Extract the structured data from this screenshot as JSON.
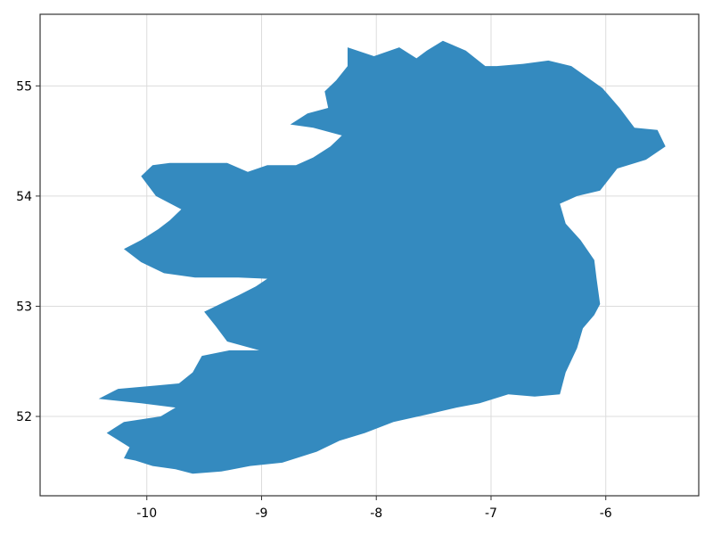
{
  "map": {
    "region": "Ireland",
    "fill_color": "#348abf",
    "grid": true,
    "x_axis": {
      "lim": [
        -10.93,
        -5.19
      ],
      "ticks": [
        -10,
        -9,
        -8,
        -7,
        -6
      ],
      "tick_labels": [
        "-10",
        "-9",
        "-8",
        "-7",
        "-6"
      ]
    },
    "y_axis": {
      "lim": [
        51.28,
        55.65
      ],
      "ticks": [
        52,
        53,
        54,
        55
      ],
      "tick_labels": [
        "52",
        "53",
        "54",
        "55"
      ]
    },
    "outline": [
      [
        -8.25,
        55.35
      ],
      [
        -8.02,
        55.27
      ],
      [
        -7.8,
        55.35
      ],
      [
        -7.65,
        55.25
      ],
      [
        -7.56,
        55.32
      ],
      [
        -7.42,
        55.41
      ],
      [
        -7.22,
        55.32
      ],
      [
        -7.05,
        55.18
      ],
      [
        -6.95,
        55.18
      ],
      [
        -6.72,
        55.2
      ],
      [
        -6.5,
        55.23
      ],
      [
        -6.3,
        55.18
      ],
      [
        -6.15,
        55.07
      ],
      [
        -6.03,
        54.98
      ],
      [
        -5.88,
        54.8
      ],
      [
        -5.75,
        54.62
      ],
      [
        -5.55,
        54.6
      ],
      [
        -5.48,
        54.45
      ],
      [
        -5.65,
        54.33
      ],
      [
        -5.9,
        54.25
      ],
      [
        -6.05,
        54.05
      ],
      [
        -6.25,
        54.0
      ],
      [
        -6.4,
        53.93
      ],
      [
        -6.35,
        53.75
      ],
      [
        -6.22,
        53.6
      ],
      [
        -6.1,
        53.42
      ],
      [
        -6.08,
        53.25
      ],
      [
        -6.05,
        53.02
      ],
      [
        -6.1,
        52.92
      ],
      [
        -6.2,
        52.8
      ],
      [
        -6.25,
        52.62
      ],
      [
        -6.35,
        52.4
      ],
      [
        -6.4,
        52.2
      ],
      [
        -6.62,
        52.18
      ],
      [
        -6.85,
        52.2
      ],
      [
        -7.1,
        52.12
      ],
      [
        -7.3,
        52.08
      ],
      [
        -7.55,
        52.02
      ],
      [
        -7.85,
        51.95
      ],
      [
        -8.1,
        51.85
      ],
      [
        -8.32,
        51.78
      ],
      [
        -8.52,
        51.68
      ],
      [
        -8.82,
        51.58
      ],
      [
        -9.1,
        51.55
      ],
      [
        -9.35,
        51.5
      ],
      [
        -9.6,
        51.48
      ],
      [
        -9.75,
        51.52
      ],
      [
        -9.95,
        51.55
      ],
      [
        -10.1,
        51.6
      ],
      [
        -10.2,
        51.62
      ],
      [
        -10.15,
        51.72
      ],
      [
        -10.35,
        51.85
      ],
      [
        -10.2,
        51.95
      ],
      [
        -9.88,
        52.0
      ],
      [
        -9.75,
        52.08
      ],
      [
        -10.05,
        52.12
      ],
      [
        -10.42,
        52.16
      ],
      [
        -10.25,
        52.25
      ],
      [
        -9.92,
        52.28
      ],
      [
        -9.72,
        52.3
      ],
      [
        -9.6,
        52.4
      ],
      [
        -9.52,
        52.55
      ],
      [
        -9.28,
        52.6
      ],
      [
        -9.02,
        52.6
      ],
      [
        -9.3,
        52.68
      ],
      [
        -9.4,
        52.82
      ],
      [
        -9.5,
        52.95
      ],
      [
        -9.2,
        53.1
      ],
      [
        -9.05,
        53.18
      ],
      [
        -8.95,
        53.25
      ],
      [
        -9.2,
        53.26
      ],
      [
        -9.58,
        53.26
      ],
      [
        -9.85,
        53.3
      ],
      [
        -10.05,
        53.4
      ],
      [
        -10.2,
        53.52
      ],
      [
        -10.05,
        53.6
      ],
      [
        -9.9,
        53.7
      ],
      [
        -9.8,
        53.78
      ],
      [
        -9.7,
        53.88
      ],
      [
        -9.92,
        54.0
      ],
      [
        -10.05,
        54.18
      ],
      [
        -9.95,
        54.28
      ],
      [
        -9.8,
        54.3
      ],
      [
        -9.6,
        54.3
      ],
      [
        -9.3,
        54.3
      ],
      [
        -9.12,
        54.22
      ],
      [
        -8.95,
        54.28
      ],
      [
        -8.7,
        54.28
      ],
      [
        -8.55,
        54.35
      ],
      [
        -8.4,
        54.45
      ],
      [
        -8.3,
        54.55
      ],
      [
        -8.55,
        54.62
      ],
      [
        -8.75,
        54.65
      ],
      [
        -8.6,
        54.75
      ],
      [
        -8.42,
        54.8
      ],
      [
        -8.45,
        54.95
      ],
      [
        -8.35,
        55.05
      ],
      [
        -8.25,
        55.18
      ]
    ]
  }
}
